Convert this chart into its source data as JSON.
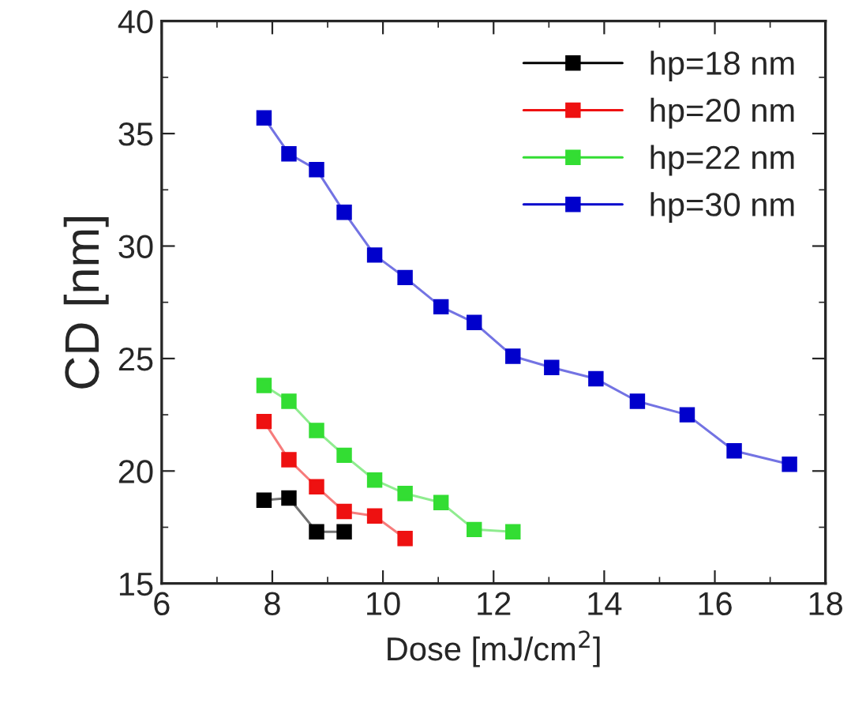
{
  "chart_data": {
    "type": "line",
    "xlabel": "Dose [mJ/cm$^{2}$]",
    "ylabel": "CD [nm]",
    "xlim": [
      6,
      18
    ],
    "xticks": [
      6,
      8,
      10,
      12,
      14,
      16,
      18
    ],
    "ylim": [
      15,
      40
    ],
    "yticks": [
      15,
      20,
      25,
      30,
      35,
      40
    ],
    "marker": "square",
    "line_style": "solid",
    "legend": "top right",
    "grid": false,
    "series": [
      {
        "name": "hp=18 nm",
        "color": "#000000",
        "x": [
          7.85,
          8.3,
          8.8,
          9.3
        ],
        "values": [
          18.7,
          18.8,
          17.3,
          17.3
        ]
      },
      {
        "name": "hp=20 nm",
        "color": "#ee1111",
        "x": [
          7.85,
          8.3,
          8.8,
          9.3,
          9.85,
          10.4
        ],
        "values": [
          22.2,
          20.5,
          19.3,
          18.2,
          18.0,
          17.0
        ]
      },
      {
        "name": "hp=22 nm",
        "color": "#33dd33",
        "x": [
          7.85,
          8.3,
          8.8,
          9.3,
          9.85,
          10.4,
          11.05,
          11.65,
          12.35
        ],
        "values": [
          23.8,
          23.1,
          21.8,
          20.7,
          19.6,
          19.0,
          18.6,
          17.4,
          17.3
        ]
      },
      {
        "name": "hp=30 nm",
        "color": "#0000cc",
        "x": [
          7.85,
          8.3,
          8.8,
          9.3,
          9.85,
          10.4,
          11.05,
          11.65,
          12.35,
          13.05,
          13.85,
          14.6,
          15.5,
          16.35,
          17.35
        ],
        "values": [
          35.7,
          34.1,
          33.4,
          31.5,
          29.6,
          28.6,
          27.3,
          26.6,
          25.1,
          24.6,
          24.1,
          23.1,
          22.5,
          20.9,
          20.3
        ]
      }
    ]
  }
}
